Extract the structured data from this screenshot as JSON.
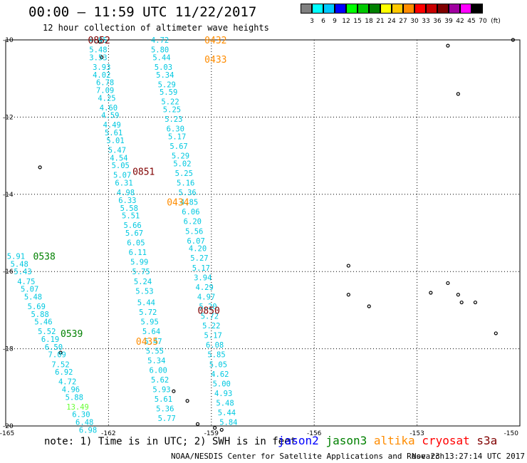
{
  "header": {
    "title": "00:00 – 11:59 UTC 11/22/2017",
    "subtitle": "12 hour collection of altimeter wave heights"
  },
  "legend": {
    "unit": "(ft)",
    "bins": [
      {
        "label": "3",
        "color": "#808080"
      },
      {
        "label": "6",
        "color": "#00ffff"
      },
      {
        "label": "9",
        "color": "#00c8ff"
      },
      {
        "label": "12",
        "color": "#0000ff"
      },
      {
        "label": "15",
        "color": "#00ff00"
      },
      {
        "label": "18",
        "color": "#00c800"
      },
      {
        "label": "21",
        "color": "#008000"
      },
      {
        "label": "24",
        "color": "#ffff00"
      },
      {
        "label": "27",
        "color": "#ffc800"
      },
      {
        "label": "30",
        "color": "#ff8c00"
      },
      {
        "label": "33",
        "color": "#ff0000"
      },
      {
        "label": "36",
        "color": "#c80000"
      },
      {
        "label": "39",
        "color": "#800000"
      },
      {
        "label": "42",
        "color": "#a000a0"
      },
      {
        "label": "45",
        "color": "#ff00ff"
      },
      {
        "label": "70",
        "color": "#000000"
      }
    ]
  },
  "footer": {
    "note": "note: 1) Time is in UTC; 2) SWH is in feet",
    "credit": "NOAA/NESDIS Center for Satellite Applications and Research",
    "timestamp": "Nov 23 13:27:14 UTC 2017",
    "satellites": [
      {
        "name": "jason2",
        "color": "#0000ff"
      },
      {
        "name": "jason3",
        "color": "#008000"
      },
      {
        "name": "altika",
        "color": "#ff8c00"
      },
      {
        "name": "cryosat",
        "color": "#ff0000"
      },
      {
        "name": "s3a",
        "color": "#800000"
      }
    ]
  },
  "chart_data": {
    "type": "scatter",
    "xlim": [
      -165,
      -150
    ],
    "ylim": [
      -20,
      -10
    ],
    "xticks": [
      "-165",
      "-162",
      "-159",
      "-156",
      "-153",
      "-150"
    ],
    "yticks": [
      "-10",
      "-12",
      "-14",
      "-16",
      "-18",
      "-20"
    ],
    "grid": true,
    "track_labels": [
      {
        "text": "0852",
        "lon": -162.6,
        "lat": -10.0,
        "color": "#800000"
      },
      {
        "text": "0432",
        "lon": -159.2,
        "lat": -10.0,
        "color": "#ff8c00"
      },
      {
        "text": "0433",
        "lon": -159.2,
        "lat": -10.5,
        "color": "#ff8c00"
      },
      {
        "text": "0851",
        "lon": -161.3,
        "lat": -13.4,
        "color": "#800000"
      },
      {
        "text": "0434",
        "lon": -160.3,
        "lat": -14.2,
        "color": "#ff8c00"
      },
      {
        "text": "0538",
        "lon": -164.2,
        "lat": -15.6,
        "color": "#008000"
      },
      {
        "text": "0850",
        "lon": -159.4,
        "lat": -17.0,
        "color": "#800000"
      },
      {
        "text": "0539",
        "lon": -163.4,
        "lat": -17.6,
        "color": "#008000"
      },
      {
        "text": "0435",
        "lon": -161.2,
        "lat": -17.8,
        "color": "#ff8c00"
      }
    ],
    "series": [
      {
        "points": [
          {
            "lon": -162.3,
            "lat": -10.0,
            "v": "4.95"
          },
          {
            "lon": -162.3,
            "lat": -10.25,
            "v": "5.48"
          },
          {
            "lon": -162.3,
            "lat": -10.45,
            "v": "3.53"
          },
          {
            "lon": -162.2,
            "lat": -10.7,
            "v": "3.93"
          },
          {
            "lon": -162.2,
            "lat": -10.9,
            "v": "4.02"
          },
          {
            "lon": -162.1,
            "lat": -11.1,
            "v": "6.78"
          },
          {
            "lon": -162.1,
            "lat": -11.3,
            "v": "7.09"
          },
          {
            "lon": -162.05,
            "lat": -11.5,
            "v": "4.25"
          },
          {
            "lon": -162.0,
            "lat": -11.75,
            "v": "4.60"
          },
          {
            "lon": -161.95,
            "lat": -11.95,
            "v": "4.59"
          },
          {
            "lon": -161.9,
            "lat": -12.2,
            "v": "4.49"
          },
          {
            "lon": -161.85,
            "lat": -12.4,
            "v": "5.61"
          },
          {
            "lon": -161.8,
            "lat": -12.6,
            "v": "5.01"
          },
          {
            "lon": -161.75,
            "lat": -12.85,
            "v": "5.47"
          },
          {
            "lon": -161.7,
            "lat": -13.05,
            "v": "4.54"
          },
          {
            "lon": -161.65,
            "lat": -13.25,
            "v": "5.05"
          },
          {
            "lon": -161.6,
            "lat": -13.5,
            "v": "5.07"
          },
          {
            "lon": -161.55,
            "lat": -13.7,
            "v": "6.31"
          },
          {
            "lon": -161.5,
            "lat": -13.95,
            "v": "4.98"
          },
          {
            "lon": -161.45,
            "lat": -14.15,
            "v": "6.33"
          },
          {
            "lon": -161.4,
            "lat": -14.35,
            "v": "5.58"
          },
          {
            "lon": -161.35,
            "lat": -14.55,
            "v": "5.51"
          },
          {
            "lon": -161.3,
            "lat": -14.8,
            "v": "5.66"
          },
          {
            "lon": -161.25,
            "lat": -15.0,
            "v": "5.67"
          },
          {
            "lon": -161.2,
            "lat": -15.25,
            "v": "6.05"
          },
          {
            "lon": -161.15,
            "lat": -15.5,
            "v": "6.11"
          },
          {
            "lon": -161.1,
            "lat": -15.75,
            "v": "5.99"
          },
          {
            "lon": -161.05,
            "lat": -16.0,
            "v": "5.75"
          },
          {
            "lon": -161.0,
            "lat": -16.25,
            "v": "5.24"
          },
          {
            "lon": -160.95,
            "lat": -16.5,
            "v": "5.53"
          },
          {
            "lon": -160.9,
            "lat": -16.8,
            "v": "5.44"
          },
          {
            "lon": -160.85,
            "lat": -17.05,
            "v": "5.72"
          },
          {
            "lon": -160.8,
            "lat": -17.3,
            "v": "5.95"
          },
          {
            "lon": -160.75,
            "lat": -17.55,
            "v": "5.64"
          },
          {
            "lon": -160.7,
            "lat": -17.8,
            "v": "5.47"
          },
          {
            "lon": -160.65,
            "lat": -18.05,
            "v": "5.55"
          },
          {
            "lon": -160.6,
            "lat": -18.3,
            "v": "5.34"
          },
          {
            "lon": -160.55,
            "lat": -18.55,
            "v": "6.00"
          },
          {
            "lon": -160.5,
            "lat": -18.8,
            "v": "5.62"
          },
          {
            "lon": -160.45,
            "lat": -19.05,
            "v": "5.93"
          },
          {
            "lon": -160.4,
            "lat": -19.3,
            "v": "5.61"
          },
          {
            "lon": -160.35,
            "lat": -19.55,
            "v": "5.36"
          },
          {
            "lon": -160.3,
            "lat": -19.8,
            "v": "5.77"
          }
        ]
      },
      {
        "points": [
          {
            "lon": -160.5,
            "lat": -10.0,
            "v": "4.72"
          },
          {
            "lon": -160.5,
            "lat": -10.25,
            "v": "5.80"
          },
          {
            "lon": -160.45,
            "lat": -10.45,
            "v": "5.44"
          },
          {
            "lon": -160.4,
            "lat": -10.7,
            "v": "5.03"
          },
          {
            "lon": -160.35,
            "lat": -10.9,
            "v": "5.34"
          },
          {
            "lon": -160.3,
            "lat": -11.15,
            "v": "5.29"
          },
          {
            "lon": -160.25,
            "lat": -11.35,
            "v": "5.59"
          },
          {
            "lon": -160.2,
            "lat": -11.6,
            "v": "5.22"
          },
          {
            "lon": -160.15,
            "lat": -11.8,
            "v": "5.25"
          },
          {
            "lon": -160.1,
            "lat": -12.05,
            "v": "5.23"
          },
          {
            "lon": -160.05,
            "lat": -12.3,
            "v": "6.30"
          },
          {
            "lon": -160.0,
            "lat": -12.5,
            "v": "5.17"
          },
          {
            "lon": -159.95,
            "lat": -12.75,
            "v": "5.67"
          },
          {
            "lon": -159.9,
            "lat": -13.0,
            "v": "5.29"
          },
          {
            "lon": -159.85,
            "lat": -13.2,
            "v": "5.02"
          },
          {
            "lon": -159.8,
            "lat": -13.45,
            "v": "5.25"
          },
          {
            "lon": -159.75,
            "lat": -13.7,
            "v": "5.16"
          },
          {
            "lon": -159.7,
            "lat": -13.95,
            "v": "5.36"
          },
          {
            "lon": -159.65,
            "lat": -14.2,
            "v": "4.85"
          },
          {
            "lon": -159.6,
            "lat": -14.45,
            "v": "6.06"
          },
          {
            "lon": -159.55,
            "lat": -14.7,
            "v": "6.20"
          },
          {
            "lon": -159.5,
            "lat": -14.95,
            "v": "5.56"
          },
          {
            "lon": -159.45,
            "lat": -15.2,
            "v": "6.07"
          },
          {
            "lon": -159.4,
            "lat": -15.4,
            "v": "4.20"
          },
          {
            "lon": -159.35,
            "lat": -15.65,
            "v": "5.27"
          },
          {
            "lon": -159.3,
            "lat": -15.9,
            "v": "5.17"
          },
          {
            "lon": -159.25,
            "lat": -16.15,
            "v": "3.94"
          },
          {
            "lon": -159.2,
            "lat": -16.4,
            "v": "4.29"
          },
          {
            "lon": -159.15,
            "lat": -16.65,
            "v": "4.97"
          },
          {
            "lon": -159.1,
            "lat": -16.9,
            "v": "5.20"
          },
          {
            "lon": -159.05,
            "lat": -17.15,
            "v": "5.72"
          },
          {
            "lon": -159.0,
            "lat": -17.4,
            "v": "5.22"
          },
          {
            "lon": -158.95,
            "lat": -17.65,
            "v": "5.17"
          },
          {
            "lon": -158.9,
            "lat": -17.9,
            "v": "6.08"
          },
          {
            "lon": -158.85,
            "lat": -18.15,
            "v": "5.85"
          },
          {
            "lon": -158.8,
            "lat": -18.4,
            "v": "5.05"
          },
          {
            "lon": -158.75,
            "lat": -18.65,
            "v": "4.62"
          },
          {
            "lon": -158.7,
            "lat": -18.9,
            "v": "5.00"
          },
          {
            "lon": -158.65,
            "lat": -19.15,
            "v": "4.93"
          },
          {
            "lon": -158.6,
            "lat": -19.4,
            "v": "5.48"
          },
          {
            "lon": -158.55,
            "lat": -19.65,
            "v": "5.44"
          },
          {
            "lon": -158.5,
            "lat": -19.9,
            "v": "5.84"
          }
        ]
      },
      {
        "points": [
          {
            "lon": -164.7,
            "lat": -15.6,
            "v": "5.91"
          },
          {
            "lon": -164.6,
            "lat": -15.8,
            "v": "5.48"
          },
          {
            "lon": -164.5,
            "lat": -16.0,
            "v": "5.43"
          },
          {
            "lon": -164.4,
            "lat": -16.25,
            "v": "4.75"
          },
          {
            "lon": -164.3,
            "lat": -16.45,
            "v": "5.07"
          },
          {
            "lon": -164.2,
            "lat": -16.65,
            "v": "5.48"
          },
          {
            "lon": -164.1,
            "lat": -16.9,
            "v": "5.69"
          },
          {
            "lon": -164.0,
            "lat": -17.1,
            "v": "5.88"
          },
          {
            "lon": -163.9,
            "lat": -17.3,
            "v": "5.46"
          },
          {
            "lon": -163.8,
            "lat": -17.55,
            "v": "5.52"
          },
          {
            "lon": -163.7,
            "lat": -17.75,
            "v": "6.19"
          },
          {
            "lon": -163.6,
            "lat": -17.95,
            "v": "6.50"
          },
          {
            "lon": -163.5,
            "lat": -18.15,
            "v": "7.09"
          },
          {
            "lon": -163.4,
            "lat": -18.4,
            "v": "7.52"
          },
          {
            "lon": -163.3,
            "lat": -18.6,
            "v": "6.92"
          },
          {
            "lon": -163.2,
            "lat": -18.85,
            "v": "4.72"
          },
          {
            "lon": -163.1,
            "lat": -19.05,
            "v": "4.96"
          },
          {
            "lon": -163.0,
            "lat": -19.25,
            "v": "5.88"
          },
          {
            "lon": -162.9,
            "lat": -19.5,
            "v": "13.49"
          },
          {
            "lon": -162.8,
            "lat": -19.7,
            "v": "6.30"
          },
          {
            "lon": -162.7,
            "lat": -19.9,
            "v": "6.48"
          },
          {
            "lon": -162.6,
            "lat": -20.1,
            "v": "6.98"
          }
        ]
      }
    ],
    "islands": [
      {
        "lon": -162.25,
        "lat": -10.05
      },
      {
        "lon": -162.2,
        "lat": -10.45
      },
      {
        "lon": -164.0,
        "lat": -13.3
      },
      {
        "lon": -163.4,
        "lat": -18.1
      },
      {
        "lon": -160.1,
        "lat": -19.1
      },
      {
        "lon": -159.7,
        "lat": -19.35
      },
      {
        "lon": -159.4,
        "lat": -19.95
      },
      {
        "lon": -158.9,
        "lat": -20.05
      },
      {
        "lon": -158.7,
        "lat": -20.1
      },
      {
        "lon": -155.0,
        "lat": -15.85
      },
      {
        "lon": -155.0,
        "lat": -16.6
      },
      {
        "lon": -154.4,
        "lat": -16.9
      },
      {
        "lon": -152.1,
        "lat": -10.15
      },
      {
        "lon": -151.8,
        "lat": -11.4
      },
      {
        "lon": -150.2,
        "lat": -10.0
      },
      {
        "lon": -152.6,
        "lat": -16.55
      },
      {
        "lon": -152.1,
        "lat": -16.3
      },
      {
        "lon": -151.8,
        "lat": -16.6
      },
      {
        "lon": -151.7,
        "lat": -16.8
      },
      {
        "lon": -151.3,
        "lat": -16.8
      },
      {
        "lon": -150.7,
        "lat": -17.6
      }
    ]
  }
}
